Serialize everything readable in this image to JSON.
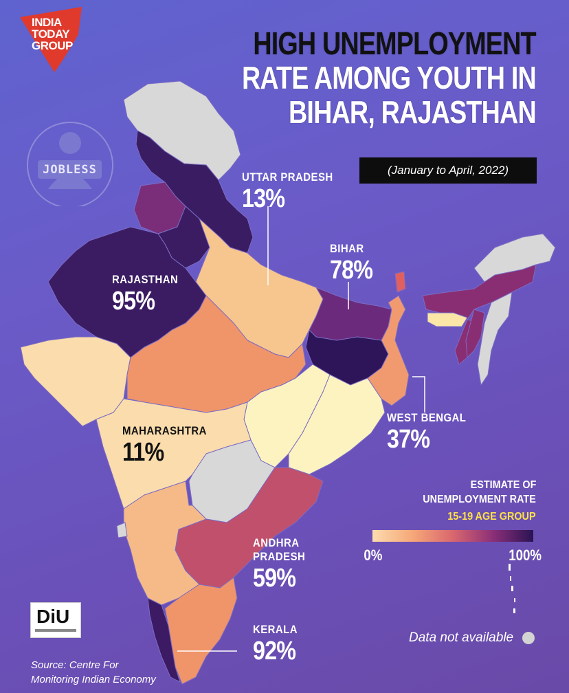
{
  "title_lines": [
    "HIGH UNEMPLOYMENT",
    "RATE AMONG YOUTH IN",
    "BIHAR, RAJASTHAN"
  ],
  "period": "(January to April, 2022)",
  "logo": {
    "line1": "INDIA",
    "line2": "TODAY",
    "line3": "GROUP",
    "color": "#e03a2d"
  },
  "jobless_icon": {
    "label": "JOBLESS",
    "icon": "unemployed-person-icon"
  },
  "states": [
    {
      "key": "uttar_pradesh",
      "name_lines": [
        "UTTAR PRADESH"
      ],
      "value": "13%",
      "color": "#f7c58e"
    },
    {
      "key": "bihar",
      "name_lines": [
        "BIHAR"
      ],
      "value": "78%",
      "color": "#6b2a7c"
    },
    {
      "key": "rajasthan",
      "name_lines": [
        "RAJASTHAN"
      ],
      "value": "95%",
      "color": "#3b1c63"
    },
    {
      "key": "maharashtra",
      "name_lines": [
        "MAHARASHTRA"
      ],
      "value": "11%",
      "color": "#fbdcac"
    },
    {
      "key": "west_bengal",
      "name_lines": [
        "WEST BENGAL"
      ],
      "value": "37%",
      "color": "#f19a70"
    },
    {
      "key": "andhra_pradesh",
      "name_lines": [
        "ANDHRA",
        "PRADESH"
      ],
      "value": "59%",
      "color": "#c1506d"
    },
    {
      "key": "kerala",
      "name_lines": [
        "KERALA"
      ],
      "value": "92%",
      "color": "#3c1b64"
    }
  ],
  "legend": {
    "title_lines": [
      "ESTIMATE OF",
      "UNEMPLOYMENT RATE"
    ],
    "age_group": "15-19 AGE GROUP",
    "min_label": "0%",
    "max_label": "100%",
    "gradient": [
      "#fbdcae",
      "#f6a778",
      "#d9676e",
      "#8b2f78",
      "#2a1354"
    ]
  },
  "not_available_label": "Data not available",
  "not_available_color": "#d3d3d3",
  "source_lines": [
    "Source:  Centre For",
    "Monitoring Indian Economy"
  ],
  "diu_logo": {
    "text": "DiU"
  }
}
